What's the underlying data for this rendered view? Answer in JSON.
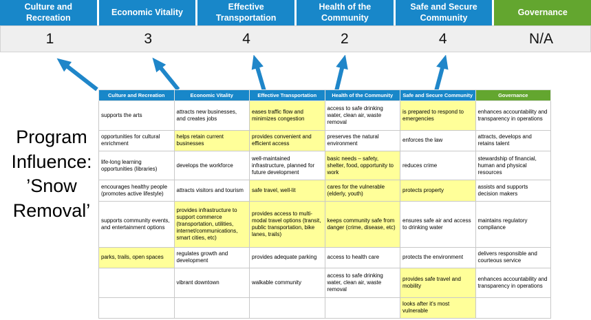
{
  "colors": {
    "pillar_blue": "#1887C9",
    "pillar_green": "#63A62F",
    "highlight_yellow": "#FFFF99",
    "score_band_bg": "#EFEFEF",
    "arrow_blue": "#1F86C9"
  },
  "pillars": [
    {
      "label": "Culture and Recreation",
      "score": "1",
      "accent": "blue"
    },
    {
      "label": "Economic Vitality",
      "score": "3",
      "accent": "blue"
    },
    {
      "label": "Effective Transportation",
      "score": "4",
      "accent": "blue"
    },
    {
      "label": "Health of the Community",
      "score": "2",
      "accent": "blue"
    },
    {
      "label": "Safe and Secure Community",
      "score": "4",
      "accent": "blue"
    },
    {
      "label": "Governance",
      "score": "N/A",
      "accent": "green"
    }
  ],
  "program_influence": {
    "text": "Program Influence: ’Snow Removal’",
    "lines": [
      "Program",
      "Influence:",
      "’Snow",
      "Removal’"
    ]
  },
  "matrix": {
    "headers": [
      {
        "label": "Culture and Recreation",
        "accent": "blue"
      },
      {
        "label": "Economic Vitality",
        "accent": "blue"
      },
      {
        "label": "Effective Transportation",
        "accent": "blue"
      },
      {
        "label": "Health of the Community",
        "accent": "blue"
      },
      {
        "label": "Safe and Secure Community",
        "accent": "blue"
      },
      {
        "label": "Governance",
        "accent": "green"
      }
    ],
    "rows": [
      [
        {
          "text": "supports the arts",
          "highlight": false
        },
        {
          "text": "attracts new businesses, and creates jobs",
          "highlight": false
        },
        {
          "text": "eases traffic flow and minimizes congestion",
          "highlight": true
        },
        {
          "text": "access to safe drinking water, clean air, waste removal",
          "highlight": false
        },
        {
          "text": "is prepared to respond to emergencies",
          "highlight": true
        },
        {
          "text": "enhances accountability and transparency in operations",
          "highlight": false
        }
      ],
      [
        {
          "text": "opportunities for cultural enrichment",
          "highlight": false
        },
        {
          "text": "helps retain current businesses",
          "highlight": true
        },
        {
          "text": "provides convenient and efficient access",
          "highlight": true
        },
        {
          "text": "preserves the natural environment",
          "highlight": false
        },
        {
          "text": "enforces the law",
          "highlight": false
        },
        {
          "text": "attracts, develops and retains talent",
          "highlight": false
        }
      ],
      [
        {
          "text": "life-long learning opportunities (libraries)",
          "highlight": false
        },
        {
          "text": "develops the workforce",
          "highlight": false
        },
        {
          "text": "well-maintained infrastructure, planned for future development",
          "highlight": false
        },
        {
          "text": "basic needs – safety, shelter, food, opportunity to work",
          "highlight": true
        },
        {
          "text": "reduces crime",
          "highlight": false
        },
        {
          "text": "stewardship of financial, human and physical resources",
          "highlight": false
        }
      ],
      [
        {
          "text": "encourages healthy people (promotes active lifestyle)",
          "highlight": false
        },
        {
          "text": "attracts visitors and tourism",
          "highlight": false
        },
        {
          "text": "safe travel, well-lit",
          "highlight": true
        },
        {
          "text": "cares for the vulnerable (elderly, youth)",
          "highlight": true
        },
        {
          "text": "protects property",
          "highlight": true
        },
        {
          "text": "assists and supports decision makers",
          "highlight": false
        }
      ],
      [
        {
          "text": "supports community events, and entertainment options",
          "highlight": false
        },
        {
          "text": "provides infrastructure to support commerce (transportation, utilities, internet/communications, smart cities, etc)",
          "highlight": true
        },
        {
          "text": "provides access to multi-modal travel options (transit, public transportation, bike lanes, trails)",
          "highlight": true
        },
        {
          "text": "keeps community safe from danger (crime, disease, etc)",
          "highlight": true
        },
        {
          "text": "ensures safe air and access to drinking water",
          "highlight": false
        },
        {
          "text": "maintains regulatory compliance",
          "highlight": false
        }
      ],
      [
        {
          "text": "parks, trails, open spaces",
          "highlight": true
        },
        {
          "text": "regulates growth and development",
          "highlight": false
        },
        {
          "text": "provides adequate parking",
          "highlight": false
        },
        {
          "text": "access to health care",
          "highlight": false
        },
        {
          "text": "protects the environment",
          "highlight": false
        },
        {
          "text": "delivers responsible and courteous service",
          "highlight": false
        }
      ],
      [
        {
          "text": "",
          "highlight": false
        },
        {
          "text": "vibrant downtown",
          "highlight": false
        },
        {
          "text": "walkable community",
          "highlight": false
        },
        {
          "text": "access to safe drinking water, clean air, waste removal",
          "highlight": false
        },
        {
          "text": "provides safe travel and mobility",
          "highlight": true
        },
        {
          "text": "enhances accountability and transparency in operations",
          "highlight": false
        }
      ],
      [
        {
          "text": "",
          "highlight": false
        },
        {
          "text": "",
          "highlight": false
        },
        {
          "text": "",
          "highlight": false
        },
        {
          "text": "",
          "highlight": false
        },
        {
          "text": "looks after it's most vulnerable",
          "highlight": true
        },
        {
          "text": "",
          "highlight": false
        }
      ]
    ]
  }
}
